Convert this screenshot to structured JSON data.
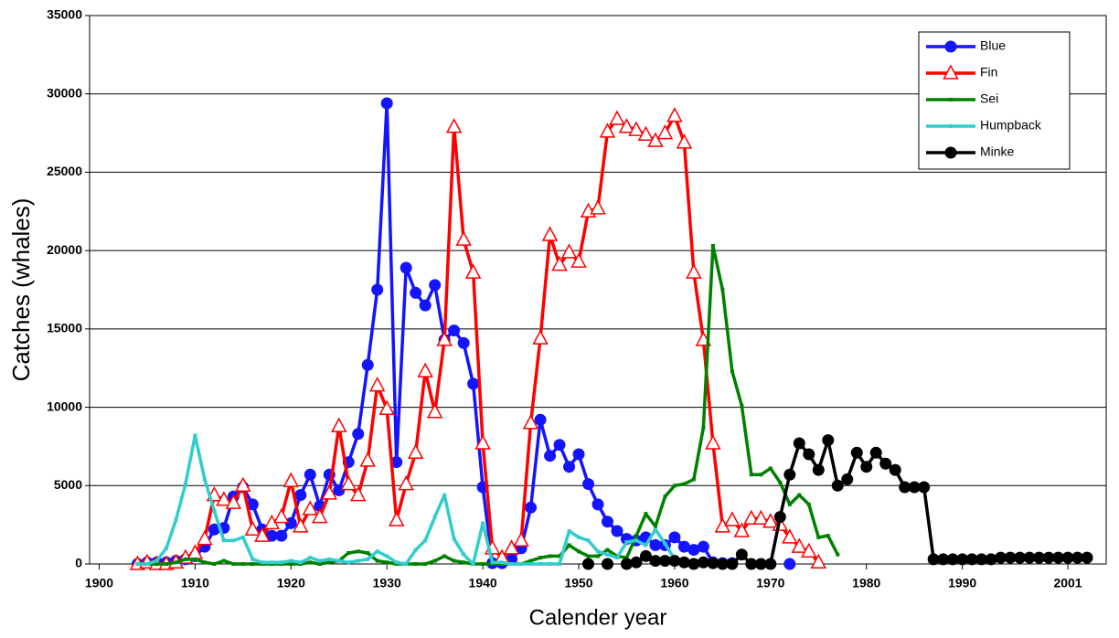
{
  "chart_data": {
    "type": "line",
    "x_label": "Calender year",
    "y_label": "Catches (whales)",
    "xlim": [
      1899,
      2005
    ],
    "xticks": [
      1900,
      1910,
      1920,
      1930,
      1940,
      1950,
      1960,
      1970,
      1980,
      1990,
      2001
    ],
    "ylim": [
      0,
      35000
    ],
    "yticks": [
      0,
      5000,
      10000,
      15000,
      20000,
      25000,
      30000,
      35000
    ],
    "grid": true,
    "legend": "top-right",
    "x": [
      1904,
      1905,
      1906,
      1907,
      1908,
      1909,
      1910,
      1911,
      1912,
      1913,
      1914,
      1915,
      1916,
      1917,
      1918,
      1919,
      1920,
      1921,
      1922,
      1923,
      1924,
      1925,
      1926,
      1927,
      1928,
      1929,
      1930,
      1931,
      1932,
      1933,
      1934,
      1935,
      1936,
      1937,
      1938,
      1939,
      1940,
      1941,
      1942,
      1943,
      1944,
      1945,
      1946,
      1947,
      1948,
      1949,
      1950,
      1951,
      1952,
      1953,
      1954,
      1955,
      1956,
      1957,
      1958,
      1959,
      1960,
      1961,
      1962,
      1963,
      1964,
      1965,
      1966,
      1967,
      1968,
      1969,
      1970,
      1971,
      1972,
      1973,
      1974,
      1975,
      1976,
      1977,
      1978,
      1979,
      1980,
      1981,
      1982,
      1983,
      1984,
      1985,
      1986,
      1987,
      1988,
      1989,
      1990,
      1991,
      1992,
      1993,
      1994,
      1995,
      1996,
      1997,
      1998,
      1999,
      2000,
      2001,
      2002,
      2003
    ],
    "series": [
      {
        "name": "Blue",
        "color": "#1414ff",
        "marker": "circle",
        "values": [
          0,
          100,
          100,
          100,
          200,
          300,
          500,
          1100,
          2200,
          2300,
          4300,
          4900,
          3800,
          2200,
          1800,
          1800,
          2600,
          4400,
          5700,
          3700,
          5700,
          4700,
          6500,
          8300,
          12700,
          17500,
          29400,
          6500,
          18900,
          17300,
          16500,
          17800,
          14300,
          14900,
          14100,
          11500,
          4900,
          50,
          50,
          300,
          1000,
          3600,
          9200,
          6900,
          7600,
          6200,
          7000,
          5100,
          3800,
          2700,
          2100,
          1600,
          1500,
          1700,
          1200,
          1200,
          1700,
          1100,
          900,
          1100,
          100,
          50,
          50,
          null,
          null,
          null,
          null,
          null,
          0,
          null,
          null,
          null,
          null,
          null,
          null,
          null,
          null,
          null,
          null,
          null,
          null,
          null,
          null,
          null,
          null,
          null,
          null,
          null,
          null,
          null,
          null,
          null,
          null,
          null,
          null,
          null,
          null,
          null,
          null,
          null
        ]
      },
      {
        "name": "Fin",
        "color": "#ff0000",
        "marker": "triangle",
        "values": [
          0,
          100,
          0,
          0,
          100,
          400,
          700,
          1600,
          4400,
          4100,
          3900,
          5000,
          2200,
          1800,
          2600,
          3000,
          5300,
          2400,
          3500,
          3000,
          4500,
          8800,
          5100,
          4400,
          6600,
          11400,
          9900,
          2800,
          5100,
          7100,
          12300,
          9700,
          14300,
          27900,
          20700,
          18600,
          7700,
          1000,
          400,
          1000,
          1500,
          9000,
          14400,
          21000,
          19100,
          19900,
          19300,
          22500,
          22700,
          27600,
          28400,
          27900,
          27700,
          27400,
          27000,
          27500,
          28600,
          26900,
          18600,
          14300,
          7700,
          2400,
          2800,
          2100,
          2900,
          2900,
          2700,
          2500,
          1700,
          1100,
          800,
          100,
          null,
          null,
          null,
          null,
          null,
          null,
          null,
          null,
          null,
          null,
          null,
          null,
          null,
          null,
          null,
          null,
          null,
          null,
          null,
          null,
          null,
          null,
          null,
          null,
          null,
          null,
          null,
          null
        ]
      },
      {
        "name": "Sei",
        "color": "#008000",
        "marker": "dot",
        "values": [
          0,
          0,
          0,
          0,
          100,
          300,
          300,
          100,
          0,
          200,
          0,
          0,
          0,
          0,
          0,
          0,
          0,
          0,
          100,
          0,
          100,
          200,
          700,
          800,
          700,
          200,
          100,
          0,
          0,
          0,
          0,
          200,
          500,
          200,
          100,
          0,
          0,
          0,
          0,
          0,
          0,
          200,
          400,
          500,
          500,
          1200,
          800,
          500,
          500,
          900,
          500,
          400,
          1800,
          3200,
          2400,
          4300,
          5000,
          5100,
          5400,
          8700,
          20300,
          17500,
          12300,
          10100,
          5700,
          5700,
          6100,
          5200,
          3800,
          4400,
          3800,
          1700,
          1800,
          600,
          null,
          null,
          null,
          null,
          null,
          null,
          null,
          null,
          null,
          null,
          null,
          null,
          null,
          null,
          null,
          null,
          null,
          null,
          null,
          null,
          null,
          null,
          null,
          null,
          null,
          null
        ]
      },
      {
        "name": "Humpback",
        "color": "#33cccc",
        "marker": "dot",
        "values": [
          0,
          0,
          200,
          1000,
          2800,
          5100,
          8200,
          5400,
          3400,
          1500,
          1500,
          1700,
          300,
          100,
          100,
          100,
          200,
          100,
          400,
          200,
          300,
          200,
          100,
          200,
          300,
          800,
          500,
          100,
          0,
          900,
          1500,
          3000,
          4400,
          1600,
          600,
          0,
          2600,
          100,
          100,
          0,
          0,
          0,
          0,
          0,
          0,
          2100,
          1700,
          1500,
          800,
          600,
          400,
          1400,
          1500,
          1200,
          2200,
          1300,
          300,
          100,
          100,
          100,
          0,
          null,
          null,
          null,
          null,
          null,
          null,
          null,
          null,
          null,
          null,
          null,
          null,
          null,
          null,
          null,
          null,
          null,
          null,
          null,
          null,
          null,
          null,
          null,
          null,
          null,
          null,
          null,
          null,
          null,
          null,
          null,
          null,
          null,
          null,
          null,
          null,
          null,
          null,
          null
        ]
      },
      {
        "name": "Minke",
        "color": "#000000",
        "marker": "circle",
        "values": [
          null,
          null,
          null,
          null,
          null,
          null,
          null,
          null,
          null,
          null,
          null,
          null,
          null,
          null,
          null,
          null,
          null,
          null,
          null,
          null,
          null,
          null,
          null,
          null,
          null,
          null,
          null,
          null,
          null,
          null,
          null,
          null,
          null,
          null,
          null,
          null,
          null,
          null,
          null,
          null,
          null,
          null,
          null,
          null,
          null,
          null,
          null,
          0,
          null,
          0,
          null,
          0,
          100,
          500,
          200,
          200,
          200,
          100,
          0,
          100,
          50,
          0,
          0,
          600,
          0,
          0,
          0,
          3000,
          5700,
          7700,
          7000,
          6000,
          7900,
          5000,
          5400,
          7100,
          6200,
          7100,
          6400,
          6000,
          4900,
          4900,
          4900,
          300,
          300,
          300,
          300,
          300,
          300,
          300,
          400,
          400,
          400,
          400,
          400,
          400,
          400,
          400,
          400,
          400
        ]
      }
    ]
  }
}
